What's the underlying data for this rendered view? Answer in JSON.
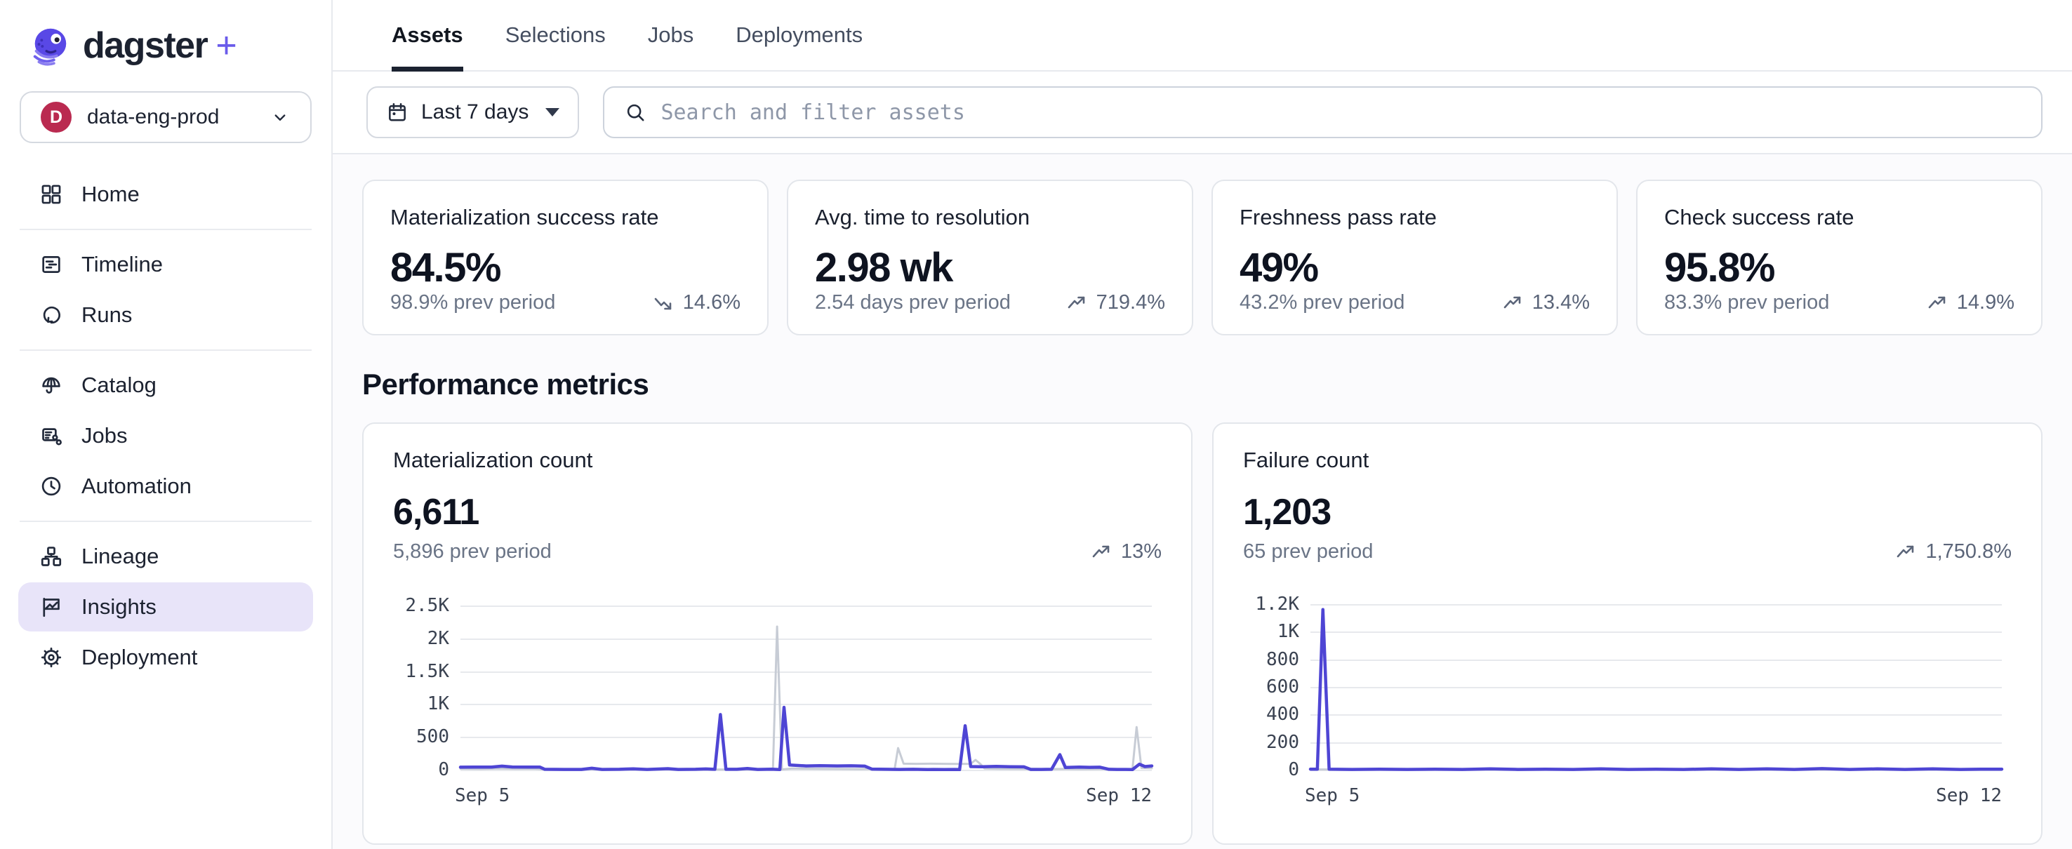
{
  "brand": {
    "name": "dagster",
    "plus": "+",
    "accent_color": "#6A5BEA"
  },
  "workspace": {
    "name": "data-eng-prod",
    "avatar_letter": "D",
    "avatar_color": "#BA2A50"
  },
  "sidebar": {
    "items": [
      {
        "label": "Home",
        "icon": "home-icon",
        "active": false
      },
      {
        "label": "Timeline",
        "icon": "timeline-icon",
        "active": false
      },
      {
        "label": "Runs",
        "icon": "runs-icon",
        "active": false
      },
      {
        "label": "Catalog",
        "icon": "catalog-icon",
        "active": false
      },
      {
        "label": "Jobs",
        "icon": "jobs-icon",
        "active": false
      },
      {
        "label": "Automation",
        "icon": "automation-icon",
        "active": false
      },
      {
        "label": "Lineage",
        "icon": "lineage-icon",
        "active": false
      },
      {
        "label": "Insights",
        "icon": "insights-icon",
        "active": true,
        "active_bg": "#E8E4F9"
      },
      {
        "label": "Deployment",
        "icon": "deployment-icon",
        "active": false
      }
    ]
  },
  "header": {
    "tabs": [
      "Assets",
      "Selections",
      "Jobs",
      "Deployments"
    ],
    "active_tab": "Assets"
  },
  "filters": {
    "date_range_label": "Last 7 days",
    "search_placeholder": "Search and filter assets",
    "search_value": ""
  },
  "section_title": "Performance metrics",
  "metric_cards": [
    {
      "title": "Materialization success rate",
      "value": "84.5%",
      "prev": "98.9% prev period",
      "trend": {
        "direction": "down",
        "label": "14.6%"
      }
    },
    {
      "title": "Avg. time to resolution",
      "value": "2.98 wk",
      "prev": "2.54 days prev period",
      "trend": {
        "direction": "up",
        "label": "719.4%"
      }
    },
    {
      "title": "Freshness pass rate",
      "value": "49%",
      "prev": "43.2% prev period",
      "trend": {
        "direction": "up",
        "label": "13.4%"
      }
    },
    {
      "title": "Check success rate",
      "value": "95.8%",
      "prev": "83.3% prev period",
      "trend": {
        "direction": "up",
        "label": "14.9%"
      }
    }
  ],
  "chart_data": [
    {
      "type": "line",
      "title": "Materialization count",
      "value": "6,611",
      "prev": "5,896 prev period",
      "trend": {
        "direction": "up",
        "label": "13%"
      },
      "x_ticks": [
        "Sep 5",
        "Sep 12"
      ],
      "y_ticks": [
        {
          "label": "2.5K",
          "value": 2500
        },
        {
          "label": "2K",
          "value": 2000
        },
        {
          "label": "1.5K",
          "value": 1500
        },
        {
          "label": "1K",
          "value": 1000
        },
        {
          "label": "500",
          "value": 500
        },
        {
          "label": "0",
          "value": 0
        }
      ],
      "y_max": 2650,
      "grid": true,
      "legend": "none",
      "series": [
        {
          "name": "prev period",
          "color": "#C7CCD5",
          "width": 3,
          "points": [
            [
              0,
              16
            ],
            [
              0.03,
              12
            ],
            [
              0.055,
              18
            ],
            [
              0.08,
              14
            ],
            [
              0.105,
              16
            ],
            [
              0.125,
              2
            ],
            [
              0.155,
              2
            ],
            [
              0.185,
              10
            ],
            [
              0.21,
              2
            ],
            [
              0.24,
              2
            ],
            [
              0.27,
              4
            ],
            [
              0.3,
              8
            ],
            [
              0.33,
              2
            ],
            [
              0.36,
              2
            ],
            [
              0.39,
              2
            ],
            [
              0.42,
              4
            ],
            [
              0.445,
              2
            ],
            [
              0.452,
              4
            ],
            [
              0.458,
              2180
            ],
            [
              0.465,
              4
            ],
            [
              0.48,
              18
            ],
            [
              0.5,
              16
            ],
            [
              0.525,
              14
            ],
            [
              0.55,
              12
            ],
            [
              0.575,
              10
            ],
            [
              0.6,
              12
            ],
            [
              0.62,
              10
            ],
            [
              0.628,
              8
            ],
            [
              0.633,
              330
            ],
            [
              0.641,
              92
            ],
            [
              0.66,
              90
            ],
            [
              0.68,
              92
            ],
            [
              0.7,
              90
            ],
            [
              0.718,
              88
            ],
            [
              0.738,
              90
            ],
            [
              0.745,
              150
            ],
            [
              0.752,
              88
            ],
            [
              0.758,
              18
            ],
            [
              0.78,
              14
            ],
            [
              0.8,
              12
            ],
            [
              0.825,
              14
            ],
            [
              0.85,
              10
            ],
            [
              0.875,
              12
            ],
            [
              0.9,
              10
            ],
            [
              0.925,
              12
            ],
            [
              0.95,
              10
            ],
            [
              0.965,
              8
            ],
            [
              0.972,
              6
            ],
            [
              0.978,
              650
            ],
            [
              0.985,
              26
            ],
            [
              1,
              22
            ]
          ]
        },
        {
          "name": "current period",
          "color": "#4E45D4",
          "width": 4.5,
          "points": [
            [
              0,
              38
            ],
            [
              0.02,
              40
            ],
            [
              0.045,
              40
            ],
            [
              0.06,
              54
            ],
            [
              0.075,
              42
            ],
            [
              0.1,
              40
            ],
            [
              0.115,
              40
            ],
            [
              0.122,
              6
            ],
            [
              0.15,
              4
            ],
            [
              0.175,
              4
            ],
            [
              0.19,
              22
            ],
            [
              0.205,
              4
            ],
            [
              0.23,
              6
            ],
            [
              0.25,
              14
            ],
            [
              0.27,
              4
            ],
            [
              0.3,
              16
            ],
            [
              0.315,
              4
            ],
            [
              0.34,
              6
            ],
            [
              0.355,
              12
            ],
            [
              0.368,
              6
            ],
            [
              0.376,
              840
            ],
            [
              0.384,
              6
            ],
            [
              0.4,
              6
            ],
            [
              0.415,
              18
            ],
            [
              0.43,
              4
            ],
            [
              0.45,
              8
            ],
            [
              0.462,
              2
            ],
            [
              0.468,
              950
            ],
            [
              0.476,
              72
            ],
            [
              0.5,
              58
            ],
            [
              0.52,
              62
            ],
            [
              0.545,
              58
            ],
            [
              0.565,
              60
            ],
            [
              0.585,
              55
            ],
            [
              0.595,
              10
            ],
            [
              0.615,
              6
            ],
            [
              0.635,
              4
            ],
            [
              0.655,
              6
            ],
            [
              0.668,
              4
            ],
            [
              0.676,
              2
            ],
            [
              0.684,
              4
            ],
            [
              0.7,
              2
            ],
            [
              0.715,
              4
            ],
            [
              0.722,
              2
            ],
            [
              0.73,
              670
            ],
            [
              0.738,
              48
            ],
            [
              0.755,
              45
            ],
            [
              0.775,
              50
            ],
            [
              0.795,
              46
            ],
            [
              0.815,
              44
            ],
            [
              0.825,
              4
            ],
            [
              0.84,
              4
            ],
            [
              0.855,
              6
            ],
            [
              0.867,
              230
            ],
            [
              0.875,
              34
            ],
            [
              0.895,
              40
            ],
            [
              0.91,
              36
            ],
            [
              0.925,
              38
            ],
            [
              0.938,
              6
            ],
            [
              0.95,
              4
            ],
            [
              0.962,
              4
            ],
            [
              0.972,
              2
            ],
            [
              0.982,
              84
            ],
            [
              0.99,
              48
            ],
            [
              1,
              58
            ]
          ]
        }
      ]
    },
    {
      "type": "line",
      "title": "Failure count",
      "value": "1,203",
      "prev": "65 prev period",
      "trend": {
        "direction": "up",
        "label": "1,750.8%"
      },
      "x_ticks": [
        "Sep 5",
        "Sep 12"
      ],
      "y_ticks": [
        {
          "label": "1.2K",
          "value": 1200
        },
        {
          "label": "1K",
          "value": 1000
        },
        {
          "label": "800",
          "value": 800
        },
        {
          "label": "600",
          "value": 600
        },
        {
          "label": "400",
          "value": 400
        },
        {
          "label": "200",
          "value": 200
        },
        {
          "label": "0",
          "value": 0
        }
      ],
      "y_max": 1260,
      "grid": true,
      "legend": "none",
      "series": [
        {
          "name": "prev period",
          "color": "#C7CCD5",
          "width": 3,
          "points": [
            [
              0,
              2
            ],
            [
              0.1,
              1
            ],
            [
              0.2,
              2
            ],
            [
              0.3,
              1
            ],
            [
              0.4,
              2
            ],
            [
              0.5,
              1
            ],
            [
              0.6,
              2
            ],
            [
              0.7,
              1
            ],
            [
              0.8,
              2
            ],
            [
              0.9,
              1
            ],
            [
              1,
              2
            ]
          ]
        },
        {
          "name": "current period",
          "color": "#4E45D4",
          "width": 4.5,
          "points": [
            [
              0,
              4
            ],
            [
              0.01,
              4
            ],
            [
              0.018,
              1160
            ],
            [
              0.027,
              4
            ],
            [
              0.06,
              2
            ],
            [
              0.1,
              4
            ],
            [
              0.14,
              2
            ],
            [
              0.18,
              4
            ],
            [
              0.22,
              2
            ],
            [
              0.26,
              6
            ],
            [
              0.3,
              2
            ],
            [
              0.34,
              4
            ],
            [
              0.38,
              2
            ],
            [
              0.42,
              6
            ],
            [
              0.46,
              2
            ],
            [
              0.5,
              4
            ],
            [
              0.54,
              2
            ],
            [
              0.58,
              6
            ],
            [
              0.62,
              2
            ],
            [
              0.66,
              6
            ],
            [
              0.7,
              2
            ],
            [
              0.74,
              8
            ],
            [
              0.78,
              2
            ],
            [
              0.82,
              6
            ],
            [
              0.86,
              2
            ],
            [
              0.9,
              6
            ],
            [
              0.94,
              2
            ],
            [
              0.97,
              4
            ],
            [
              1,
              4
            ]
          ]
        }
      ]
    }
  ]
}
